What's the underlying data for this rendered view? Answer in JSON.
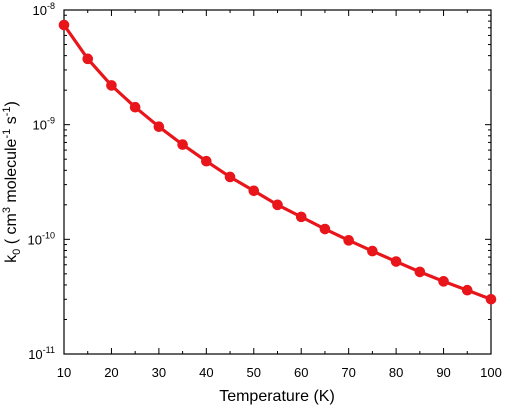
{
  "chart_data": {
    "type": "line",
    "xlabel": "Temperature (K)",
    "ylabel": {
      "prefix": "k",
      "prefix_sub": "0",
      "units": [
        {
          "text": " ( cm",
          "sup": "3"
        },
        {
          "text": " molecule",
          "sup": "-1"
        },
        {
          "text": " s",
          "sup": "-1"
        },
        {
          "text": ")",
          "sup": ""
        }
      ]
    },
    "xlim": [
      10,
      100
    ],
    "ylim": [
      1e-11,
      1e-08
    ],
    "yscale": "log",
    "xticks": [
      10,
      20,
      30,
      40,
      50,
      60,
      70,
      80,
      90,
      100
    ],
    "xtick_labels": [
      "10",
      "20",
      "30",
      "40",
      "50",
      "60",
      "70",
      "80",
      "90",
      "100"
    ],
    "yticks": [
      {
        "value": 1e-11,
        "base": "10",
        "exp": "-11"
      },
      {
        "value": 1e-10,
        "base": "10",
        "exp": "-10"
      },
      {
        "value": 1e-09,
        "base": "10",
        "exp": "-9"
      },
      {
        "value": 1e-08,
        "base": "10",
        "exp": "-8"
      }
    ],
    "grid": false,
    "series": [
      {
        "color": "#e8151b",
        "x": [
          10,
          15,
          20,
          25,
          30,
          35,
          40,
          45,
          50,
          55,
          60,
          65,
          70,
          75,
          80,
          85,
          90,
          95,
          100
        ],
        "y": [
          7.4e-09,
          3.75e-09,
          2.2e-09,
          1.42e-09,
          9.6e-10,
          6.7e-10,
          4.8e-10,
          3.5e-10,
          2.65e-10,
          2e-10,
          1.57e-10,
          1.23e-10,
          9.8e-11,
          7.9e-11,
          6.4e-11,
          5.2e-11,
          4.3e-11,
          3.6e-11,
          3e-11
        ]
      }
    ]
  }
}
